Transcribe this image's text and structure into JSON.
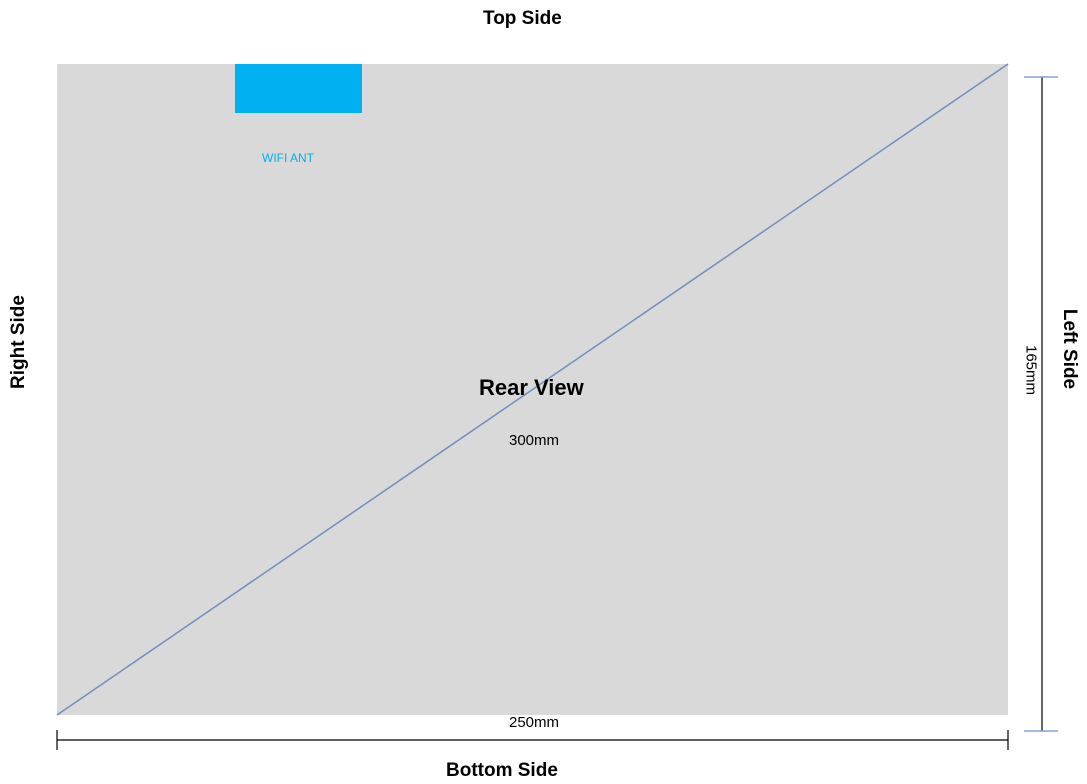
{
  "labels": {
    "top": "Top Side",
    "bottom": "Bottom Side",
    "right": "Right Side",
    "left": "Left Side"
  },
  "panel": {
    "title": "Rear View",
    "diagonal": "300mm",
    "width": "250mm",
    "height": "165mm"
  },
  "antenna": {
    "label": "WIFI ANT"
  },
  "colors": {
    "panel": "#d9d9d9",
    "antenna": "#00b0f0",
    "antenna_label": "#00b0f0",
    "diagonal_line": "#6f8fbf",
    "height_line_caps": "#6f8fbf",
    "dimension_line": "#000000"
  }
}
